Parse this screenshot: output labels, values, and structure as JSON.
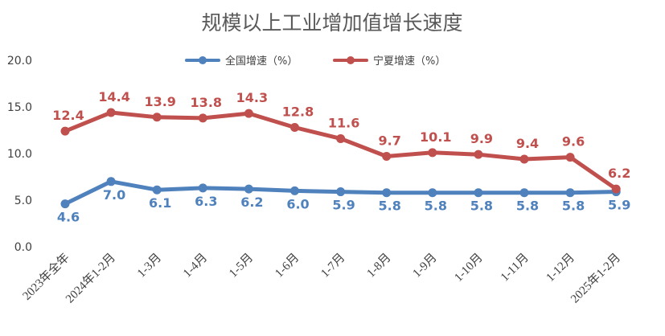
{
  "chart_data": {
    "type": "line",
    "title": "规模以上工业增加值增长速度",
    "categories": [
      "2023年全年",
      "2024年1-2月",
      "1-3月",
      "1-4月",
      "1-5月",
      "1-6月",
      "1-7月",
      "1-8月",
      "1-9月",
      "1-10月",
      "1-11月",
      "1-12月",
      "2025年1-2月"
    ],
    "series": [
      {
        "name": "全国增速（%）",
        "color": "#4f81bd",
        "values": [
          4.6,
          7.0,
          6.1,
          6.3,
          6.2,
          6.0,
          5.9,
          5.8,
          5.8,
          5.8,
          5.8,
          5.8,
          5.9
        ],
        "labels": [
          "4.6",
          "7.0",
          "6.1",
          "6.3",
          "6.2",
          "6.0",
          "5.9",
          "5.8",
          "5.8",
          "5.8",
          "5.8",
          "5.8",
          "5.9"
        ]
      },
      {
        "name": "宁夏增速（%）",
        "color": "#c0504d",
        "values": [
          12.4,
          14.4,
          13.9,
          13.8,
          14.3,
          12.8,
          11.6,
          9.7,
          10.1,
          9.9,
          9.4,
          9.6,
          6.2
        ],
        "labels": [
          "12.4",
          "14.4",
          "13.9",
          "13.8",
          "14.3",
          "12.8",
          "11.6",
          "9.7",
          "10.1",
          "9.9",
          "9.4",
          "9.6",
          "6.2"
        ]
      }
    ],
    "ylim": [
      0,
      20
    ],
    "yticks": [
      "0.0",
      "5.0",
      "10.0",
      "15.0",
      "20.0"
    ],
    "ytick_values": [
      0,
      5,
      10,
      15,
      20
    ],
    "grid": false,
    "legend_position": "top"
  }
}
